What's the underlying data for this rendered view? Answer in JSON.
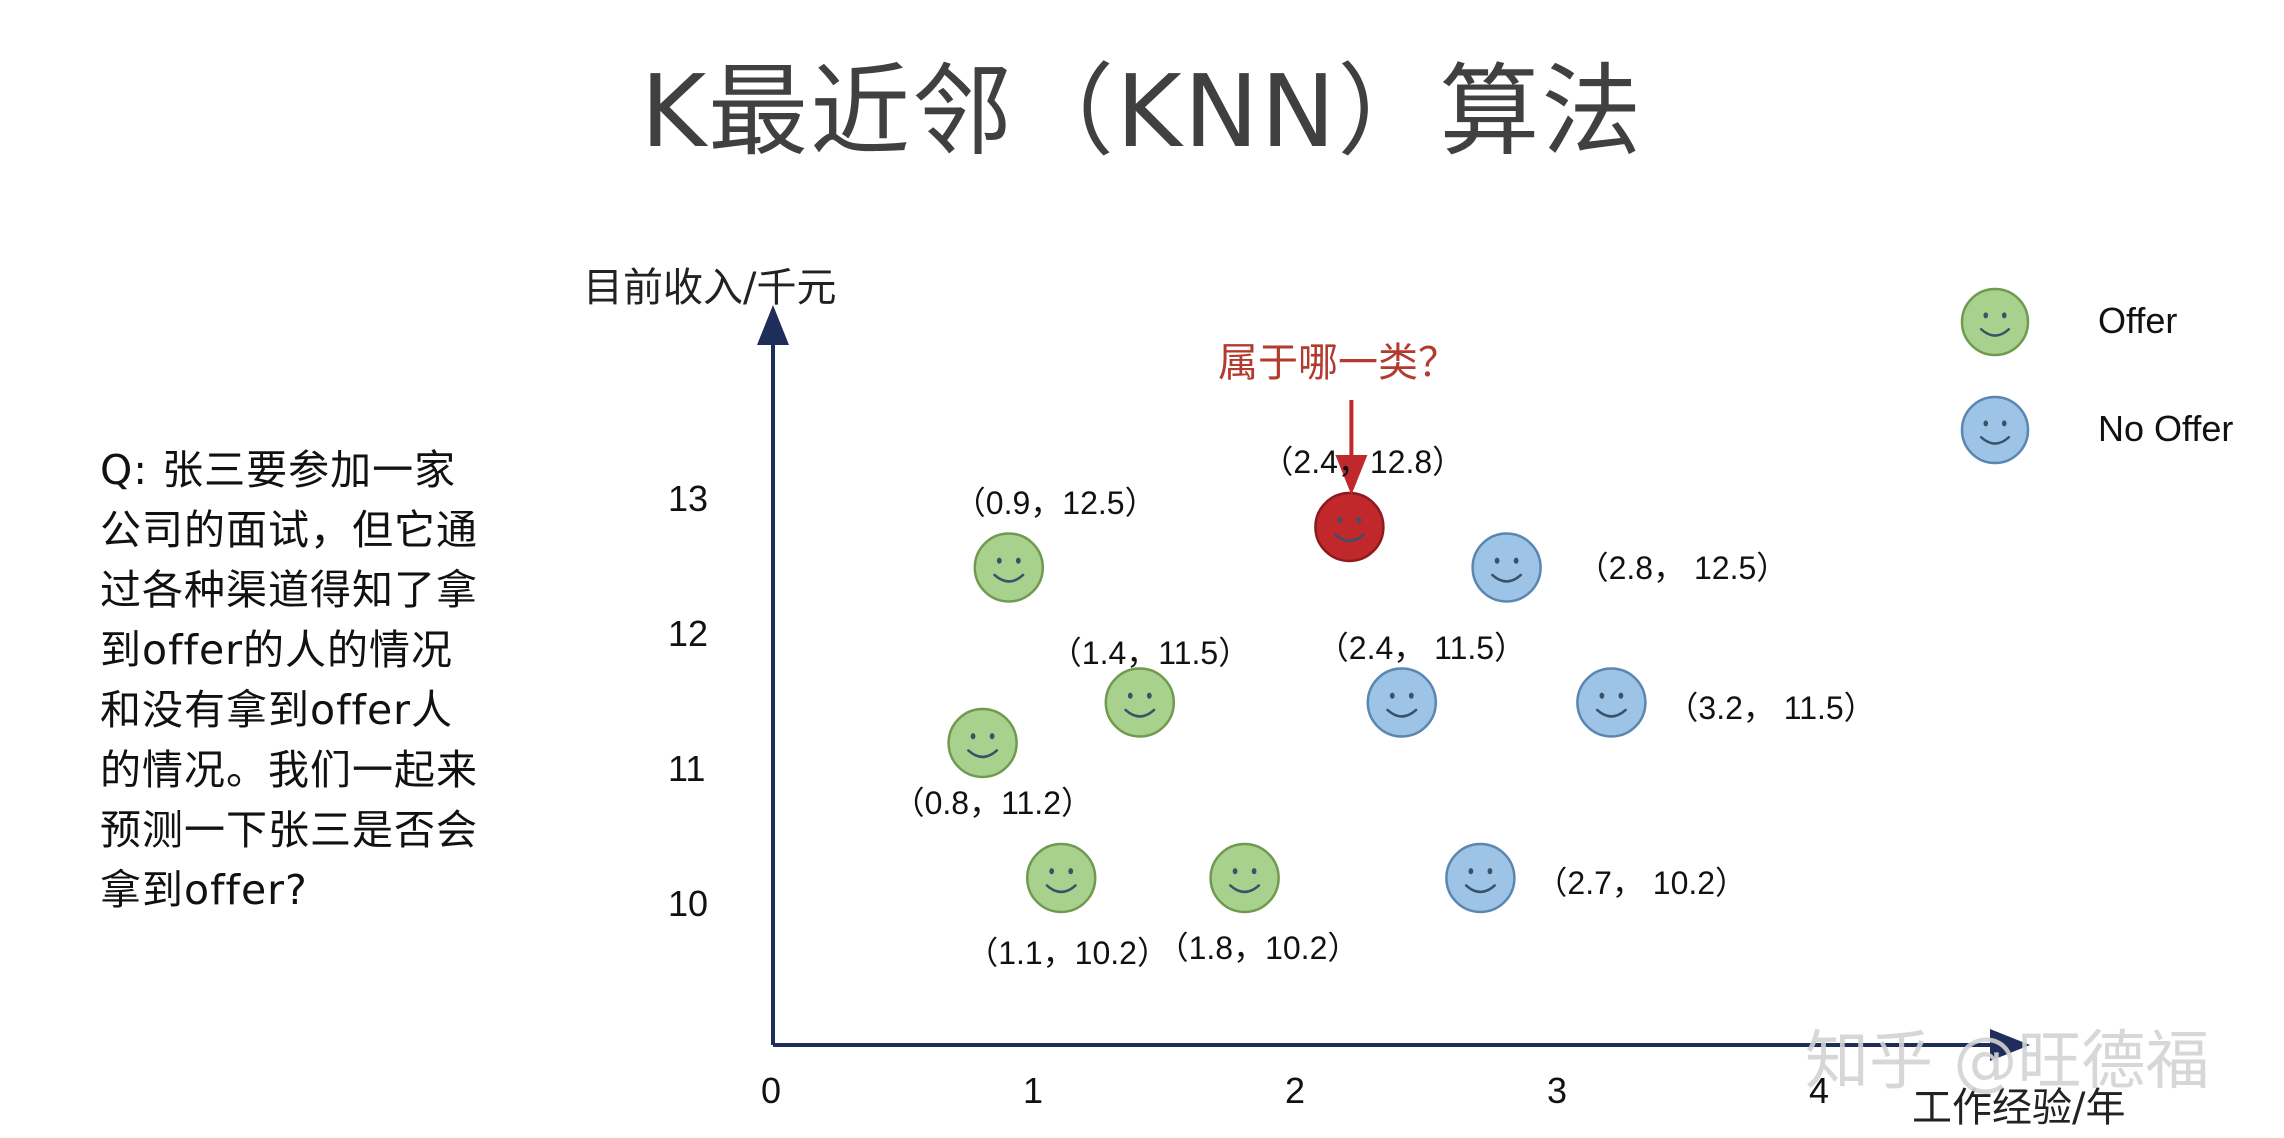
{
  "slide": {
    "title": "K最近邻（KNN）算法",
    "question_lines": [
      "Q: 张三要参加一家",
      "公司的面试，但它通",
      "过各种渠道得知了拿",
      "到offer的人的情况",
      "和没有拿到offer人",
      "的情况。我们一起来",
      "预测一下张三是否会",
      "拿到offer?"
    ],
    "watermark": "知乎 @旺德福"
  },
  "chart_data": {
    "type": "scatter",
    "xlabel": "工作经验/年",
    "ylabel": "目前收入/千元",
    "x_ticks": [
      "0",
      "1",
      "2",
      "3",
      "4"
    ],
    "y_ticks": [
      "10",
      "11",
      "12",
      "13"
    ],
    "query_label": "属于哪一类？",
    "legend": [
      {
        "name": "Offer",
        "color": "#a9d18e"
      },
      {
        "name": "No Offer",
        "color": "#9dc3e6"
      }
    ],
    "colors": {
      "Offer": "#a9d18e",
      "No Offer": "#9dc3e6",
      "Query": "#c0282c",
      "axis": "#1f2d5a"
    },
    "points": [
      {
        "class": "Offer",
        "x": 0.9,
        "y": 12.5,
        "label": "（0.9，12.5）"
      },
      {
        "class": "Offer",
        "x": 1.4,
        "y": 11.5,
        "label": "（1.4，11.5）"
      },
      {
        "class": "Offer",
        "x": 0.8,
        "y": 11.2,
        "label": "（0.8，11.2）"
      },
      {
        "class": "Offer",
        "x": 1.1,
        "y": 10.2,
        "label": "（1.1，10.2）"
      },
      {
        "class": "Offer",
        "x": 1.8,
        "y": 10.2,
        "label": "（1.8，10.2）"
      },
      {
        "class": "No Offer",
        "x": 2.8,
        "y": 12.5,
        "label": "（2.8，  12.5）"
      },
      {
        "class": "No Offer",
        "x": 2.4,
        "y": 11.5,
        "label": "（2.4，  11.5）"
      },
      {
        "class": "No Offer",
        "x": 3.2,
        "y": 11.5,
        "label": "（3.2，  11.5）"
      },
      {
        "class": "No Offer",
        "x": 2.7,
        "y": 10.2,
        "label": "（2.7，  10.2）"
      },
      {
        "class": "Query",
        "x": 2.4,
        "y": 12.8,
        "label": "（2.4，12.8）"
      }
    ]
  }
}
